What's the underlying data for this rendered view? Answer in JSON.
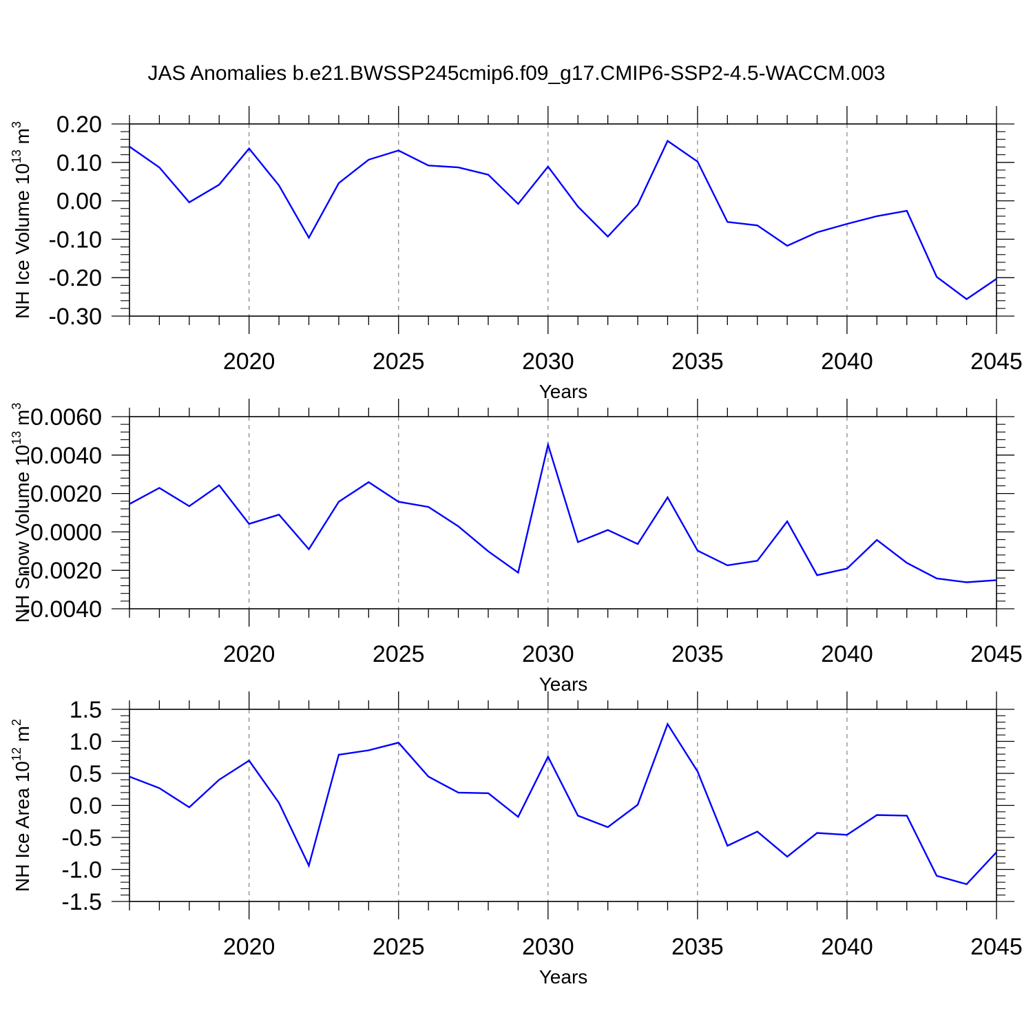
{
  "title": "JAS Anomalies b.e21.BWSSP245cmip6.f09_g17.CMIP6-SSP2-4.5-WACCM.003",
  "colors": {
    "series": "#0000ff",
    "axis": "#000000",
    "grid": "#808080"
  },
  "chart_data": [
    {
      "type": "line",
      "ylabel": {
        "main": "NH Ice Volume 10",
        "exp": "13",
        "unit": " m",
        "unit_exp": "3"
      },
      "xlabel": "Years",
      "xlim": [
        2016,
        2045
      ],
      "ylim": [
        -0.3,
        0.2
      ],
      "y_ticks": [
        0.2,
        0.1,
        0.0,
        -0.1,
        -0.2,
        -0.3
      ],
      "y_tick_labels": [
        "0.20",
        "0.10",
        "0.00",
        "-0.10",
        "-0.20",
        "-0.30"
      ],
      "x_ticks": [
        2020,
        2025,
        2030,
        2035,
        2040,
        2045
      ],
      "x_tick_labels": [
        "2020",
        "2025",
        "2030",
        "2035",
        "2040",
        "2045"
      ],
      "grid_x": [
        2020,
        2025,
        2030,
        2035,
        2040
      ],
      "series": [
        {
          "x": [
            2016,
            2017,
            2018,
            2019,
            2020,
            2021,
            2022,
            2023,
            2024,
            2025,
            2026,
            2027,
            2028,
            2029,
            2030,
            2031,
            2032,
            2033,
            2034,
            2035,
            2036,
            2037,
            2038,
            2039,
            2040,
            2041,
            2042,
            2043,
            2044,
            2045
          ],
          "values": [
            0.141,
            0.087,
            -0.004,
            0.042,
            0.136,
            0.04,
            -0.096,
            0.046,
            0.107,
            0.131,
            0.092,
            0.087,
            0.068,
            -0.008,
            0.089,
            -0.015,
            -0.093,
            -0.01,
            0.156,
            0.102,
            -0.055,
            -0.064,
            -0.117,
            -0.082,
            -0.06,
            -0.04,
            -0.026,
            -0.198,
            -0.256,
            -0.203
          ]
        }
      ]
    },
    {
      "type": "line",
      "ylabel": {
        "main": "NH Snow Volume 10",
        "exp": "13",
        "unit": " m",
        "unit_exp": "3"
      },
      "xlabel": "Years",
      "xlim": [
        2016,
        2045
      ],
      "ylim": [
        -0.004,
        0.006
      ],
      "y_ticks": [
        0.006,
        0.004,
        0.002,
        0.0,
        -0.002,
        -0.004
      ],
      "y_tick_labels": [
        "0.0060",
        "0.0040",
        "0.0020",
        "0.0000",
        "-0.0020",
        "-0.0040"
      ],
      "x_ticks": [
        2020,
        2025,
        2030,
        2035,
        2040,
        2045
      ],
      "x_tick_labels": [
        "2020",
        "2025",
        "2030",
        "2035",
        "2040",
        "2045"
      ],
      "grid_x": [
        2020,
        2025,
        2030,
        2035,
        2040
      ],
      "series": [
        {
          "x": [
            2016,
            2017,
            2018,
            2019,
            2020,
            2021,
            2022,
            2023,
            2024,
            2025,
            2026,
            2027,
            2028,
            2029,
            2030,
            2031,
            2032,
            2033,
            2034,
            2035,
            2036,
            2037,
            2038,
            2039,
            2040,
            2041,
            2042,
            2043,
            2044,
            2045
          ],
          "values": [
            0.00145,
            0.00229,
            0.00134,
            0.00243,
            0.00042,
            0.0009,
            -0.0009,
            0.00157,
            0.00259,
            0.00157,
            0.0013,
            0.00029,
            -0.00101,
            -0.00212,
            0.00454,
            -0.00053,
            0.0001,
            -0.00063,
            0.0018,
            -0.00097,
            -0.00174,
            -0.0015,
            0.00055,
            -0.00225,
            -0.00191,
            -0.00042,
            -0.00161,
            -0.00242,
            -0.00262,
            -0.00251
          ]
        }
      ]
    },
    {
      "type": "line",
      "ylabel": {
        "main": "NH Ice Area 10",
        "exp": "12",
        "unit": " m",
        "unit_exp": "2"
      },
      "xlabel": "Years",
      "xlim": [
        2016,
        2045
      ],
      "ylim": [
        -1.5,
        1.5
      ],
      "y_ticks": [
        1.5,
        1.0,
        0.5,
        0.0,
        -0.5,
        -1.0,
        -1.5
      ],
      "y_tick_labels": [
        "1.5",
        "1.0",
        "0.5",
        "0.0",
        "-0.5",
        "-1.0",
        "-1.5"
      ],
      "x_ticks": [
        2020,
        2025,
        2030,
        2035,
        2040,
        2045
      ],
      "x_tick_labels": [
        "2020",
        "2025",
        "2030",
        "2035",
        "2040",
        "2045"
      ],
      "grid_x": [
        2020,
        2025,
        2030,
        2035,
        2040
      ],
      "series": [
        {
          "x": [
            2016,
            2017,
            2018,
            2019,
            2020,
            2021,
            2022,
            2023,
            2024,
            2025,
            2026,
            2027,
            2028,
            2029,
            2030,
            2031,
            2032,
            2033,
            2034,
            2035,
            2036,
            2037,
            2038,
            2039,
            2040,
            2041,
            2042,
            2043,
            2044,
            2045
          ],
          "values": [
            0.45,
            0.27,
            -0.03,
            0.4,
            0.7,
            0.04,
            -0.94,
            0.79,
            0.86,
            0.98,
            0.45,
            0.2,
            0.19,
            -0.18,
            0.76,
            -0.16,
            -0.34,
            0.01,
            1.27,
            0.53,
            -0.63,
            -0.41,
            -0.8,
            -0.43,
            -0.46,
            -0.15,
            -0.16,
            -1.1,
            -1.23,
            -0.73
          ]
        }
      ]
    }
  ]
}
